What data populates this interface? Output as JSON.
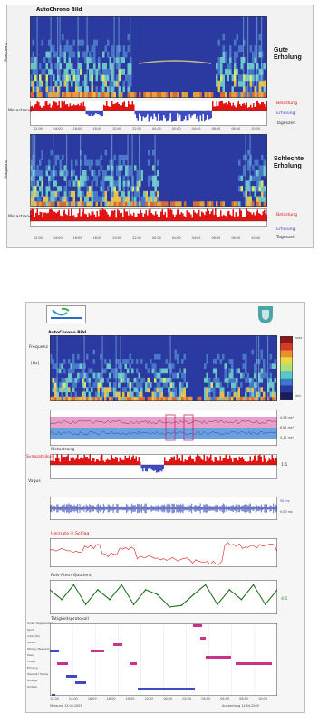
{
  "top_figure": {
    "title": "AutoChrono Bild",
    "ylabel_frequency": "Frequenz",
    "ylabel_modulation": "Metastrang",
    "panel1": {
      "label_line1": "Gute",
      "label_line2": "Erholung"
    },
    "panel2": {
      "label_line1": "Schlechte",
      "label_line2": "Erholung"
    },
    "legend": {
      "activation": "Belastung",
      "recovery": "Erholung",
      "daytime": "Tageszeit"
    },
    "time_ticks": [
      "12:00",
      "14:00",
      "16:00",
      "18:00",
      "20:00",
      "22:00",
      "00:00",
      "02:00",
      "04:00",
      "06:00",
      "08:00",
      "10:00"
    ]
  },
  "bottom_figure": {
    "title": "AutoChrono Bild",
    "ylabel_frequency": "Frequenz",
    "ylabel_hz": "[Hz]",
    "modulation_title": "Metastrang",
    "modulation_left_top": "Sympathikus",
    "modulation_left_bottom": "Vagus",
    "modulation_right": "1:1",
    "hr_title": "Herzrate in Schlag",
    "pulse_title": "Puls-Atem-Quotient",
    "pulse_right": "4:1",
    "activity_title": "Tätigkeitsprotokoll",
    "band_right": [
      "4.96 ms²",
      "6.61 ms²",
      "0.11 ms²"
    ],
    "mid_right": [
      "50 ms",
      "0.00 ms"
    ],
    "colorbar_top": "max",
    "colorbar_bottom": "min",
    "activity_categories": [
      "Schlaf / Regeneration",
      "Sport",
      "Arbeit (PC)",
      "Verkehr",
      "Sitzung / Besprechung",
      "Essen",
      "Freizeit",
      "Erholung",
      "Haushalt / Familie",
      "Sonstige",
      "Schlafen"
    ],
    "time_ticks": [
      "12:00",
      "14:00",
      "16:00",
      "18:00",
      "20:00",
      "22:00",
      "00:00",
      "02:00",
      "04:00",
      "06:00",
      "08:00",
      "10:00"
    ],
    "footer_left": "Messung 13.04.2005",
    "footer_right": "Auswertung 14.04.2005"
  },
  "colors": {
    "red": "#e11414",
    "blue": "#3e4ac4",
    "green": "#1f6e1f",
    "magenta": "#c8328c",
    "spectrogram_bg": "#2a3aa0"
  },
  "chart_data": [
    {
      "type": "heatmap",
      "title": "AutoChrono Bild",
      "ylabel": "Frequenz",
      "xlabel": "Tageszeit",
      "note": "Gute Erholung"
    },
    {
      "type": "area",
      "ylabel": "Metastrang",
      "series": [
        {
          "name": "Belastung",
          "values": [
            0.8,
            0.9,
            0.7,
            0.9,
            0.6,
            0.8,
            0.7,
            0.5,
            0.9,
            0.8,
            0.6,
            0.7,
            0.8,
            0.9,
            0.8
          ]
        },
        {
          "name": "Erholung",
          "values": [
            0.1,
            0.0,
            0.2,
            0.0,
            0.3,
            0.0,
            0.2,
            0.6,
            0.8,
            0.7,
            0.5,
            0.4,
            0.1,
            0.0,
            0.1
          ]
        }
      ]
    },
    {
      "type": "heatmap",
      "ylabel": "Frequenz",
      "note": "Schlechte Erholung"
    },
    {
      "type": "area",
      "ylabel": "Metastrang",
      "series": [
        {
          "name": "Belastung",
          "values": [
            0.8,
            0.8,
            0.9,
            0.8,
            0.9,
            0.8,
            0.8,
            0.9,
            0.8,
            0.8,
            0.9,
            0.8
          ]
        },
        {
          "name": "Erholung",
          "values": [
            0,
            0,
            0,
            0,
            0,
            0,
            0,
            0,
            0,
            0,
            0,
            0
          ]
        }
      ]
    },
    {
      "type": "line",
      "title": "Herzrate in Schlag",
      "values": [
        80,
        78,
        90,
        70,
        85,
        65,
        60,
        58,
        55,
        50,
        95,
        88,
        92,
        80
      ]
    },
    {
      "type": "line",
      "title": "Puls-Atem-Quotient",
      "values": [
        5,
        3,
        6,
        2,
        5,
        3,
        6,
        2,
        5,
        4,
        1.5,
        1.8,
        4,
        6,
        2,
        5,
        3,
        6,
        2,
        5
      ]
    },
    {
      "type": "bar",
      "title": "Tätigkeitsprotokoll",
      "categories": [
        "Schlaf / Regeneration",
        "Sport",
        "Arbeit (PC)",
        "Verkehr",
        "Sitzung / Besprechung",
        "Essen",
        "Freizeit",
        "Erholung",
        "Haushalt / Familie",
        "Sonstige",
        "Schlafen"
      ]
    }
  ]
}
